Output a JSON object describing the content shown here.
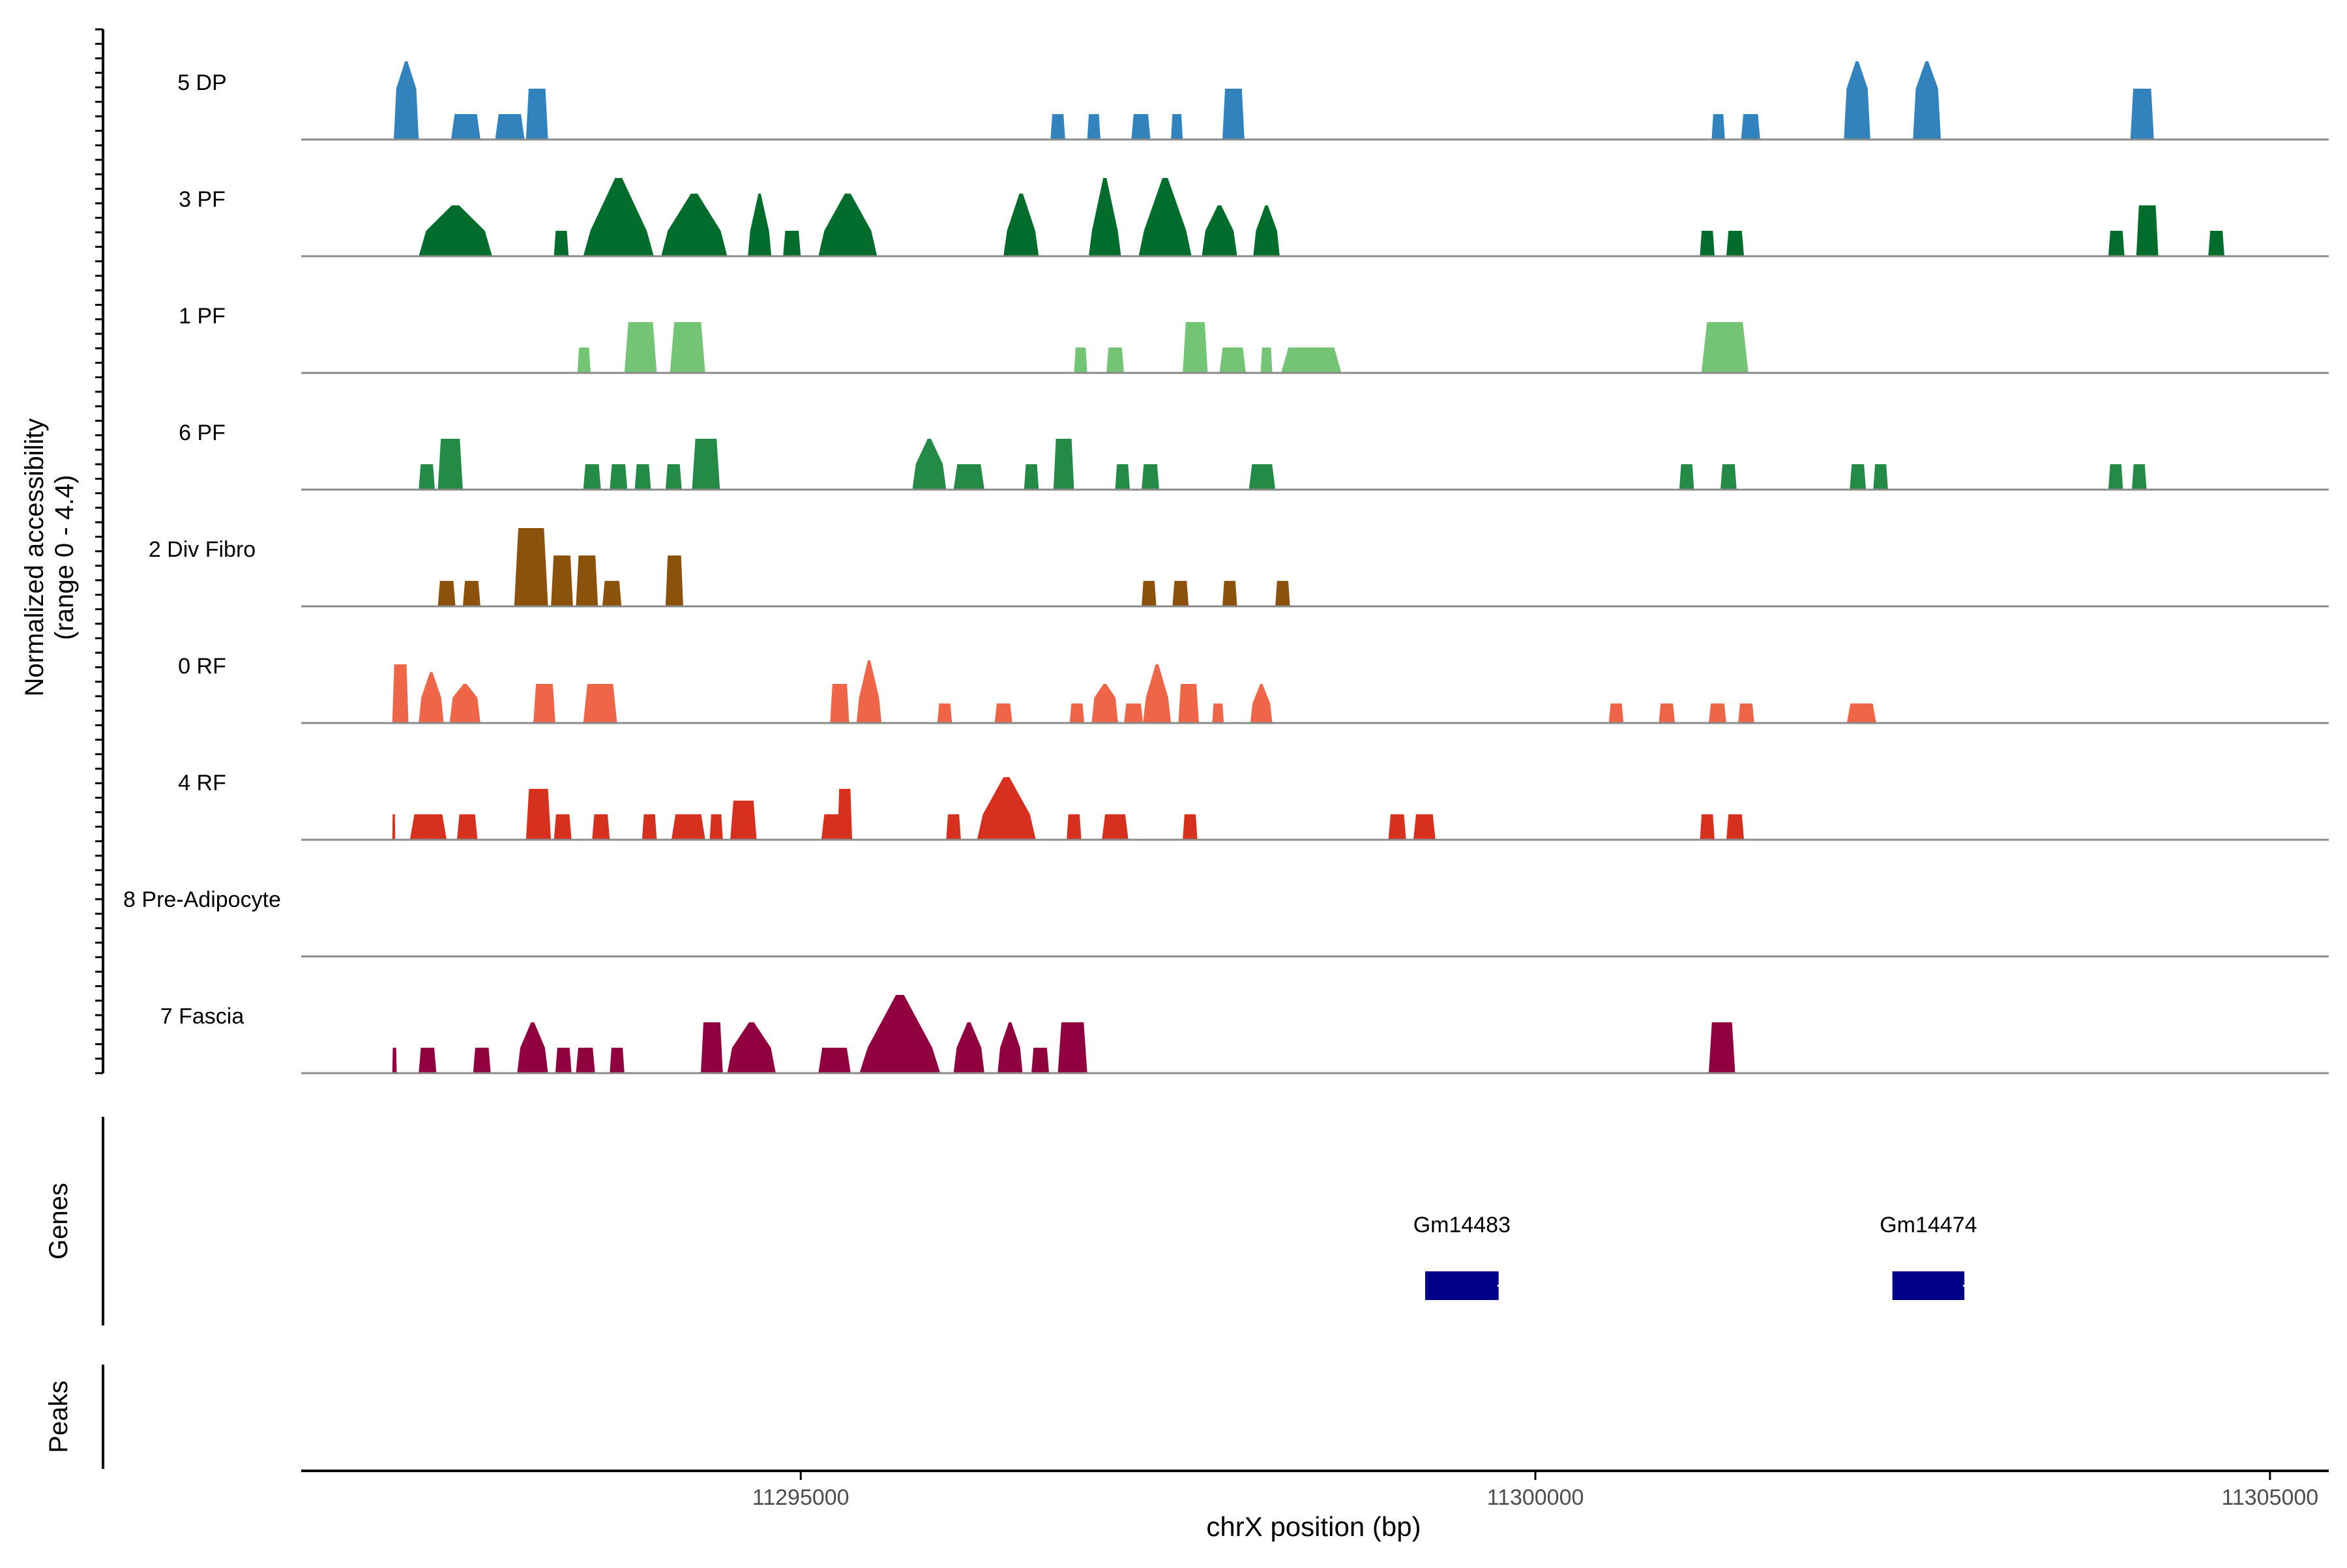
{
  "chart_data": {
    "type": "area",
    "title": "",
    "ylabel_line1": "Normalized accessibility",
    "ylabel_line2": "(range 0 - 4.4)",
    "ylim": [
      0,
      4.4
    ],
    "xlabel": "chrX position (bp)",
    "xlim": [
      11291600,
      11305400
    ],
    "xticks": [
      11295000,
      11300000,
      11305000
    ],
    "xtick_labels": [
      "11295000",
      "11300000",
      "11305000"
    ],
    "track_labels": {
      "genes": "Genes",
      "peaks": "Peaks"
    },
    "tracks": [
      {
        "name": "5 DP",
        "color": "#3182bd",
        "peaks": [
          [
            11292230,
            11292400,
            4.0,
            2.6
          ],
          [
            11292620,
            11292820,
            1.3
          ],
          [
            11292920,
            11293120,
            1.3
          ],
          [
            11293130,
            11293280,
            2.6
          ],
          [
            11296700,
            11296800,
            1.3
          ],
          [
            11296950,
            11297040,
            1.3
          ],
          [
            11297250,
            11297380,
            1.3
          ],
          [
            11297520,
            11297600,
            1.3
          ],
          [
            11297870,
            11298020,
            2.6
          ],
          [
            11301200,
            11301290,
            1.3
          ],
          [
            11301400,
            11301530,
            1.3
          ],
          [
            11302100,
            11302280,
            4.0,
            2.6
          ],
          [
            11302570,
            11302760,
            4.0,
            2.6
          ],
          [
            11304050,
            11304210,
            2.6
          ]
        ]
      },
      {
        "name": "3 PF",
        "color": "#006d2c",
        "peaks": [
          [
            11292400,
            11292900,
            2.6,
            1.3
          ],
          [
            11293320,
            11293420,
            1.3
          ],
          [
            11293520,
            11294000,
            4.0,
            1.3
          ],
          [
            11294050,
            11294500,
            3.2,
            1.3
          ],
          [
            11294640,
            11294800,
            3.2,
            1.3
          ],
          [
            11294880,
            11295000,
            1.3
          ],
          [
            11295120,
            11295520,
            3.2,
            1.3
          ],
          [
            11296380,
            11296620,
            3.2,
            1.3
          ],
          [
            11296960,
            11297180,
            4.0,
            1.3
          ],
          [
            11297300,
            11297660,
            4.0,
            1.3
          ],
          [
            11297730,
            11297970,
            2.6,
            1.3
          ],
          [
            11298080,
            11298260,
            2.6,
            1.3
          ],
          [
            11301120,
            11301220,
            1.3
          ],
          [
            11301300,
            11301420,
            1.3
          ],
          [
            11303900,
            11304010,
            1.3
          ],
          [
            11304090,
            11304240,
            2.6
          ],
          [
            11304580,
            11304690,
            1.3
          ]
        ]
      },
      {
        "name": "1 PF",
        "color": "#74c476",
        "peaks": [
          [
            11293480,
            11293570,
            1.3
          ],
          [
            11293800,
            11294020,
            2.6
          ],
          [
            11294110,
            11294350,
            2.6
          ],
          [
            11296860,
            11296950,
            1.3
          ],
          [
            11297080,
            11297200,
            1.3
          ],
          [
            11297600,
            11297770,
            2.6
          ],
          [
            11297850,
            11298030,
            1.3
          ],
          [
            11298130,
            11298210,
            1.3
          ],
          [
            11298270,
            11298680,
            1.3
          ],
          [
            11301130,
            11301450,
            2.6
          ]
        ]
      },
      {
        "name": "6 PF",
        "color": "#238b45",
        "peaks": [
          [
            11292400,
            11292510,
            1.3
          ],
          [
            11292530,
            11292700,
            2.6
          ],
          [
            11293520,
            11293640,
            1.3
          ],
          [
            11293700,
            11293820,
            1.3
          ],
          [
            11293870,
            11293980,
            1.3
          ],
          [
            11294080,
            11294190,
            1.3
          ],
          [
            11294260,
            11294450,
            2.6
          ],
          [
            11295760,
            11295990,
            2.6,
            1.3
          ],
          [
            11296040,
            11296250,
            1.3
          ],
          [
            11296520,
            11296620,
            1.3
          ],
          [
            11296720,
            11296860,
            2.6
          ],
          [
            11297140,
            11297240,
            1.3
          ],
          [
            11297320,
            11297440,
            1.3
          ],
          [
            11298050,
            11298230,
            1.3
          ],
          [
            11300980,
            11301080,
            1.3
          ],
          [
            11301260,
            11301370,
            1.3
          ],
          [
            11302140,
            11302250,
            1.3
          ],
          [
            11302300,
            11302400,
            1.3
          ],
          [
            11303900,
            11304000,
            1.3
          ],
          [
            11304060,
            11304160,
            1.3
          ]
        ]
      },
      {
        "name": "2 Div Fibro",
        "color": "#8c510a",
        "peaks": [
          [
            11292530,
            11292650,
            1.3
          ],
          [
            11292700,
            11292820,
            1.3
          ],
          [
            11293050,
            11293280,
            4.0
          ],
          [
            11293300,
            11293450,
            2.6
          ],
          [
            11293470,
            11293620,
            2.6
          ],
          [
            11293650,
            11293780,
            1.3
          ],
          [
            11294080,
            11294200,
            2.6
          ],
          [
            11297320,
            11297420,
            1.3
          ],
          [
            11297530,
            11297640,
            1.3
          ],
          [
            11297870,
            11297970,
            1.3
          ],
          [
            11298230,
            11298330,
            1.3
          ]
        ]
      },
      {
        "name": "0 RF",
        "color": "#ef6548",
        "peaks": [
          [
            11292220,
            11292330,
            3.0
          ],
          [
            11292400,
            11292570,
            2.6,
            1.3
          ],
          [
            11292610,
            11292820,
            2.0,
            1.3
          ],
          [
            11293180,
            11293330,
            2.0
          ],
          [
            11293520,
            11293750,
            2.0
          ],
          [
            11295200,
            11295330,
            2.0
          ],
          [
            11295380,
            11295550,
            3.2,
            1.3
          ],
          [
            11295930,
            11296030,
            1.0
          ],
          [
            11296320,
            11296440,
            1.0
          ],
          [
            11296830,
            11296930,
            1.0
          ],
          [
            11296980,
            11297160,
            2.0,
            1.3
          ],
          [
            11297200,
            11297330,
            1.0
          ],
          [
            11297330,
            11297520,
            3.0,
            1.3
          ],
          [
            11297570,
            11297710,
            2.0
          ],
          [
            11297800,
            11297880,
            1.0
          ],
          [
            11298060,
            11298210,
            2.0,
            1.0
          ],
          [
            11300500,
            11300600,
            1.0
          ],
          [
            11300840,
            11300950,
            1.0
          ],
          [
            11301180,
            11301300,
            1.0
          ],
          [
            11301380,
            11301490,
            1.0
          ],
          [
            11302120,
            11302320,
            1.0
          ]
        ]
      },
      {
        "name": "4 RF",
        "color": "#d7301f",
        "peaks": [
          [
            11292220,
            11292240,
            1.3
          ],
          [
            11292340,
            11292590,
            1.3
          ],
          [
            11292660,
            11292800,
            1.3
          ],
          [
            11293130,
            11293300,
            2.6
          ],
          [
            11293320,
            11293440,
            1.3
          ],
          [
            11293580,
            11293700,
            1.3
          ],
          [
            11293920,
            11294020,
            1.3
          ],
          [
            11294120,
            11294350,
            1.3
          ],
          [
            11294380,
            11294470,
            1.3
          ],
          [
            11294520,
            11294700,
            2.0
          ],
          [
            11295140,
            11295310,
            1.3
          ],
          [
            11295250,
            11295350,
            2.6
          ],
          [
            11295990,
            11296090,
            1.3
          ],
          [
            11296200,
            11296600,
            3.2,
            1.3
          ],
          [
            11296810,
            11296910,
            1.3
          ],
          [
            11297050,
            11297230,
            1.3
          ],
          [
            11297600,
            11297700,
            1.3
          ],
          [
            11299000,
            11299120,
            1.3
          ],
          [
            11299170,
            11299320,
            1.3
          ],
          [
            11301120,
            11301220,
            1.3
          ],
          [
            11301300,
            11301420,
            1.3
          ]
        ]
      },
      {
        "name": "8 Pre-Adipocyte",
        "color": "#8c2d04",
        "peaks": []
      },
      {
        "name": "7 Fascia",
        "color": "#91003f",
        "peaks": [
          [
            11292220,
            11292250,
            1.3
          ],
          [
            11292400,
            11292520,
            1.3
          ],
          [
            11292770,
            11292890,
            1.3
          ],
          [
            11293070,
            11293280,
            2.6,
            1.3
          ],
          [
            11293330,
            11293440,
            1.3
          ],
          [
            11293470,
            11293600,
            1.3
          ],
          [
            11293700,
            11293800,
            1.3
          ],
          [
            11294320,
            11294470,
            2.6
          ],
          [
            11294500,
            11294830,
            2.6,
            1.3
          ],
          [
            11295120,
            11295340,
            1.3
          ],
          [
            11295400,
            11295950,
            4.0,
            1.3
          ],
          [
            11296040,
            11296250,
            2.6,
            1.3
          ],
          [
            11296340,
            11296510,
            2.6,
            1.3
          ],
          [
            11296570,
            11296690,
            1.3
          ],
          [
            11296750,
            11296950,
            2.6
          ],
          [
            11301180,
            11301360,
            2.6
          ]
        ]
      }
    ],
    "genes": [
      {
        "name": "Gm14483",
        "start": 11299250,
        "end": 11299750
      },
      {
        "name": "Gm14474",
        "start": 11302430,
        "end": 11302920
      }
    ]
  }
}
